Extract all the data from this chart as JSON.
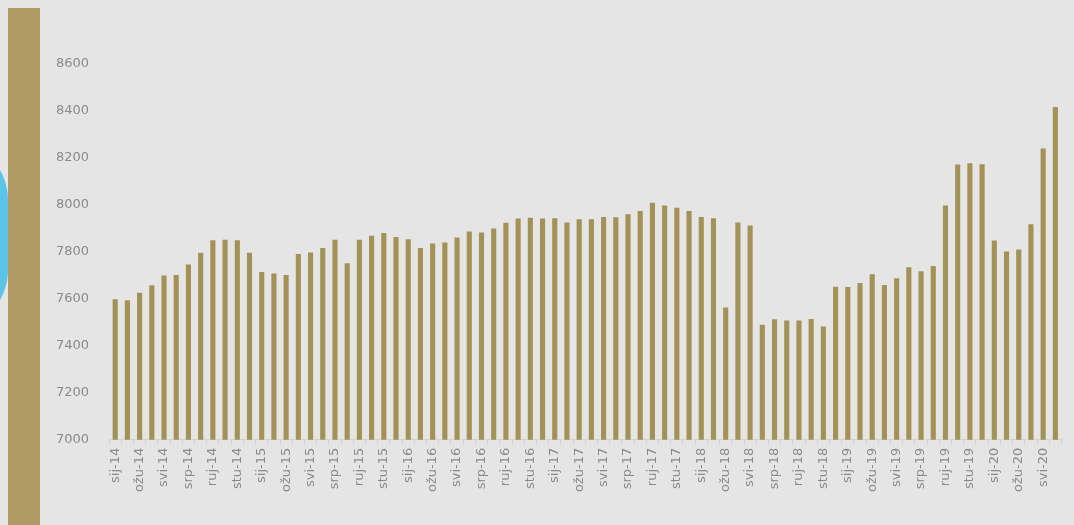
{
  "chart_data": {
    "type": "bar",
    "categories": [
      "sij-14",
      null,
      "ožu-14",
      null,
      "svi-14",
      null,
      "srp-14",
      null,
      "ruj-14",
      null,
      "stu-14",
      null,
      "sij-15",
      null,
      "ožu-15",
      null,
      "svi-15",
      null,
      "srp-15",
      null,
      "ruj-15",
      null,
      "stu-15",
      null,
      "sij-16",
      null,
      "ožu-16",
      null,
      "svi-16",
      null,
      "srp-16",
      null,
      "ruj-16",
      null,
      "stu-16",
      null,
      "sij-17",
      null,
      "ožu-17",
      null,
      "svi-17",
      null,
      "srp-17",
      null,
      "ruj-17",
      null,
      "stu-17",
      null,
      "sij-18",
      null,
      "ožu-18",
      null,
      "svi-18",
      null,
      "srp-18",
      null,
      "ruj-18",
      null,
      "stu-18",
      null,
      "sij-19",
      null,
      "ožu-19",
      null,
      "svi-19",
      null,
      "srp-19",
      null,
      "ruj-19",
      null,
      "stu-19",
      null,
      "sij-20",
      null,
      "ožu-20",
      null,
      "svi-20",
      null
    ],
    "values": [
      7598,
      7594,
      7626,
      7658,
      7699,
      7702,
      7746,
      7796,
      7849,
      7852,
      7849,
      7796,
      7714,
      7708,
      7702,
      7791,
      7797,
      7816,
      7852,
      7752,
      7852,
      7869,
      7880,
      7863,
      7854,
      7816,
      7836,
      7840,
      7861,
      7887,
      7883,
      7900,
      7924,
      7942,
      7945,
      7942,
      7943,
      7925,
      7939,
      7939,
      7948,
      7947,
      7960,
      7974,
      8009,
      7998,
      7988,
      7974,
      7948,
      7943,
      7563,
      7925,
      7912,
      7490,
      7513,
      7508,
      7508,
      7514,
      7482,
      7651,
      7650,
      7668,
      7705,
      7659,
      7688,
      7735,
      7717,
      7740,
      7998,
      8172,
      8177,
      8173,
      7848,
      7802,
      7810,
      7918,
      8240,
      8417
    ],
    "color": "#a39157",
    "ylim": [
      7000,
      8600
    ],
    "yticks": [
      7000,
      7200,
      7400,
      7600,
      7800,
      8000,
      8200,
      8400,
      8600
    ]
  }
}
